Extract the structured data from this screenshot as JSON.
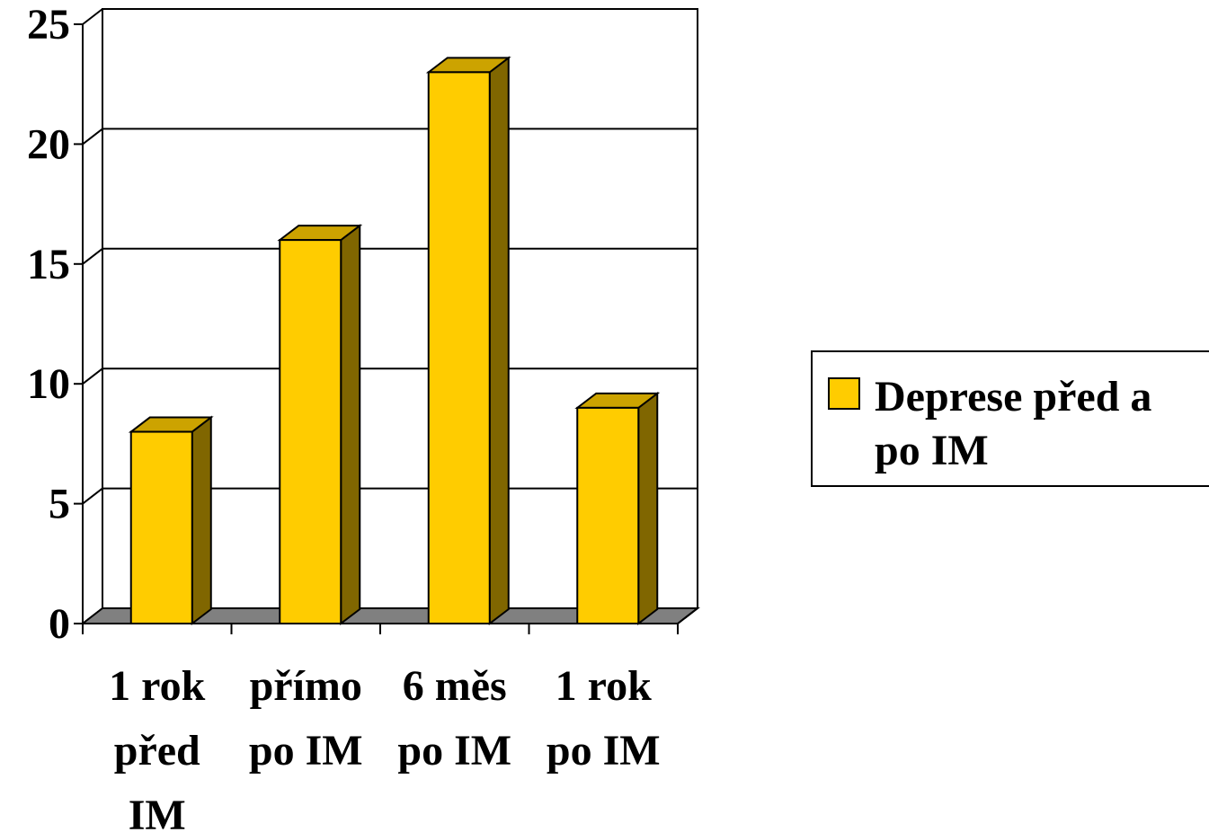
{
  "chart_data": {
    "type": "bar",
    "categories": [
      [
        "1 rok",
        "před",
        "IM"
      ],
      [
        "přímo",
        "po IM"
      ],
      [
        "6 měs",
        "po IM"
      ],
      [
        "1 rok",
        "po IM"
      ]
    ],
    "series": [
      {
        "name": "Deprese před a po IM",
        "legend_lines": [
          "Deprese před a",
          "po IM"
        ],
        "values": [
          8,
          16,
          23,
          9
        ],
        "color": "#FFCC00",
        "side_color": "#806600",
        "top_color": "#CCA300"
      }
    ],
    "yticks": [
      "0",
      "5",
      "10",
      "15",
      "20",
      "25"
    ],
    "ylim": [
      0,
      25
    ],
    "grid": true,
    "legend": "right",
    "three_d": true,
    "floor_color": "#808080"
  }
}
